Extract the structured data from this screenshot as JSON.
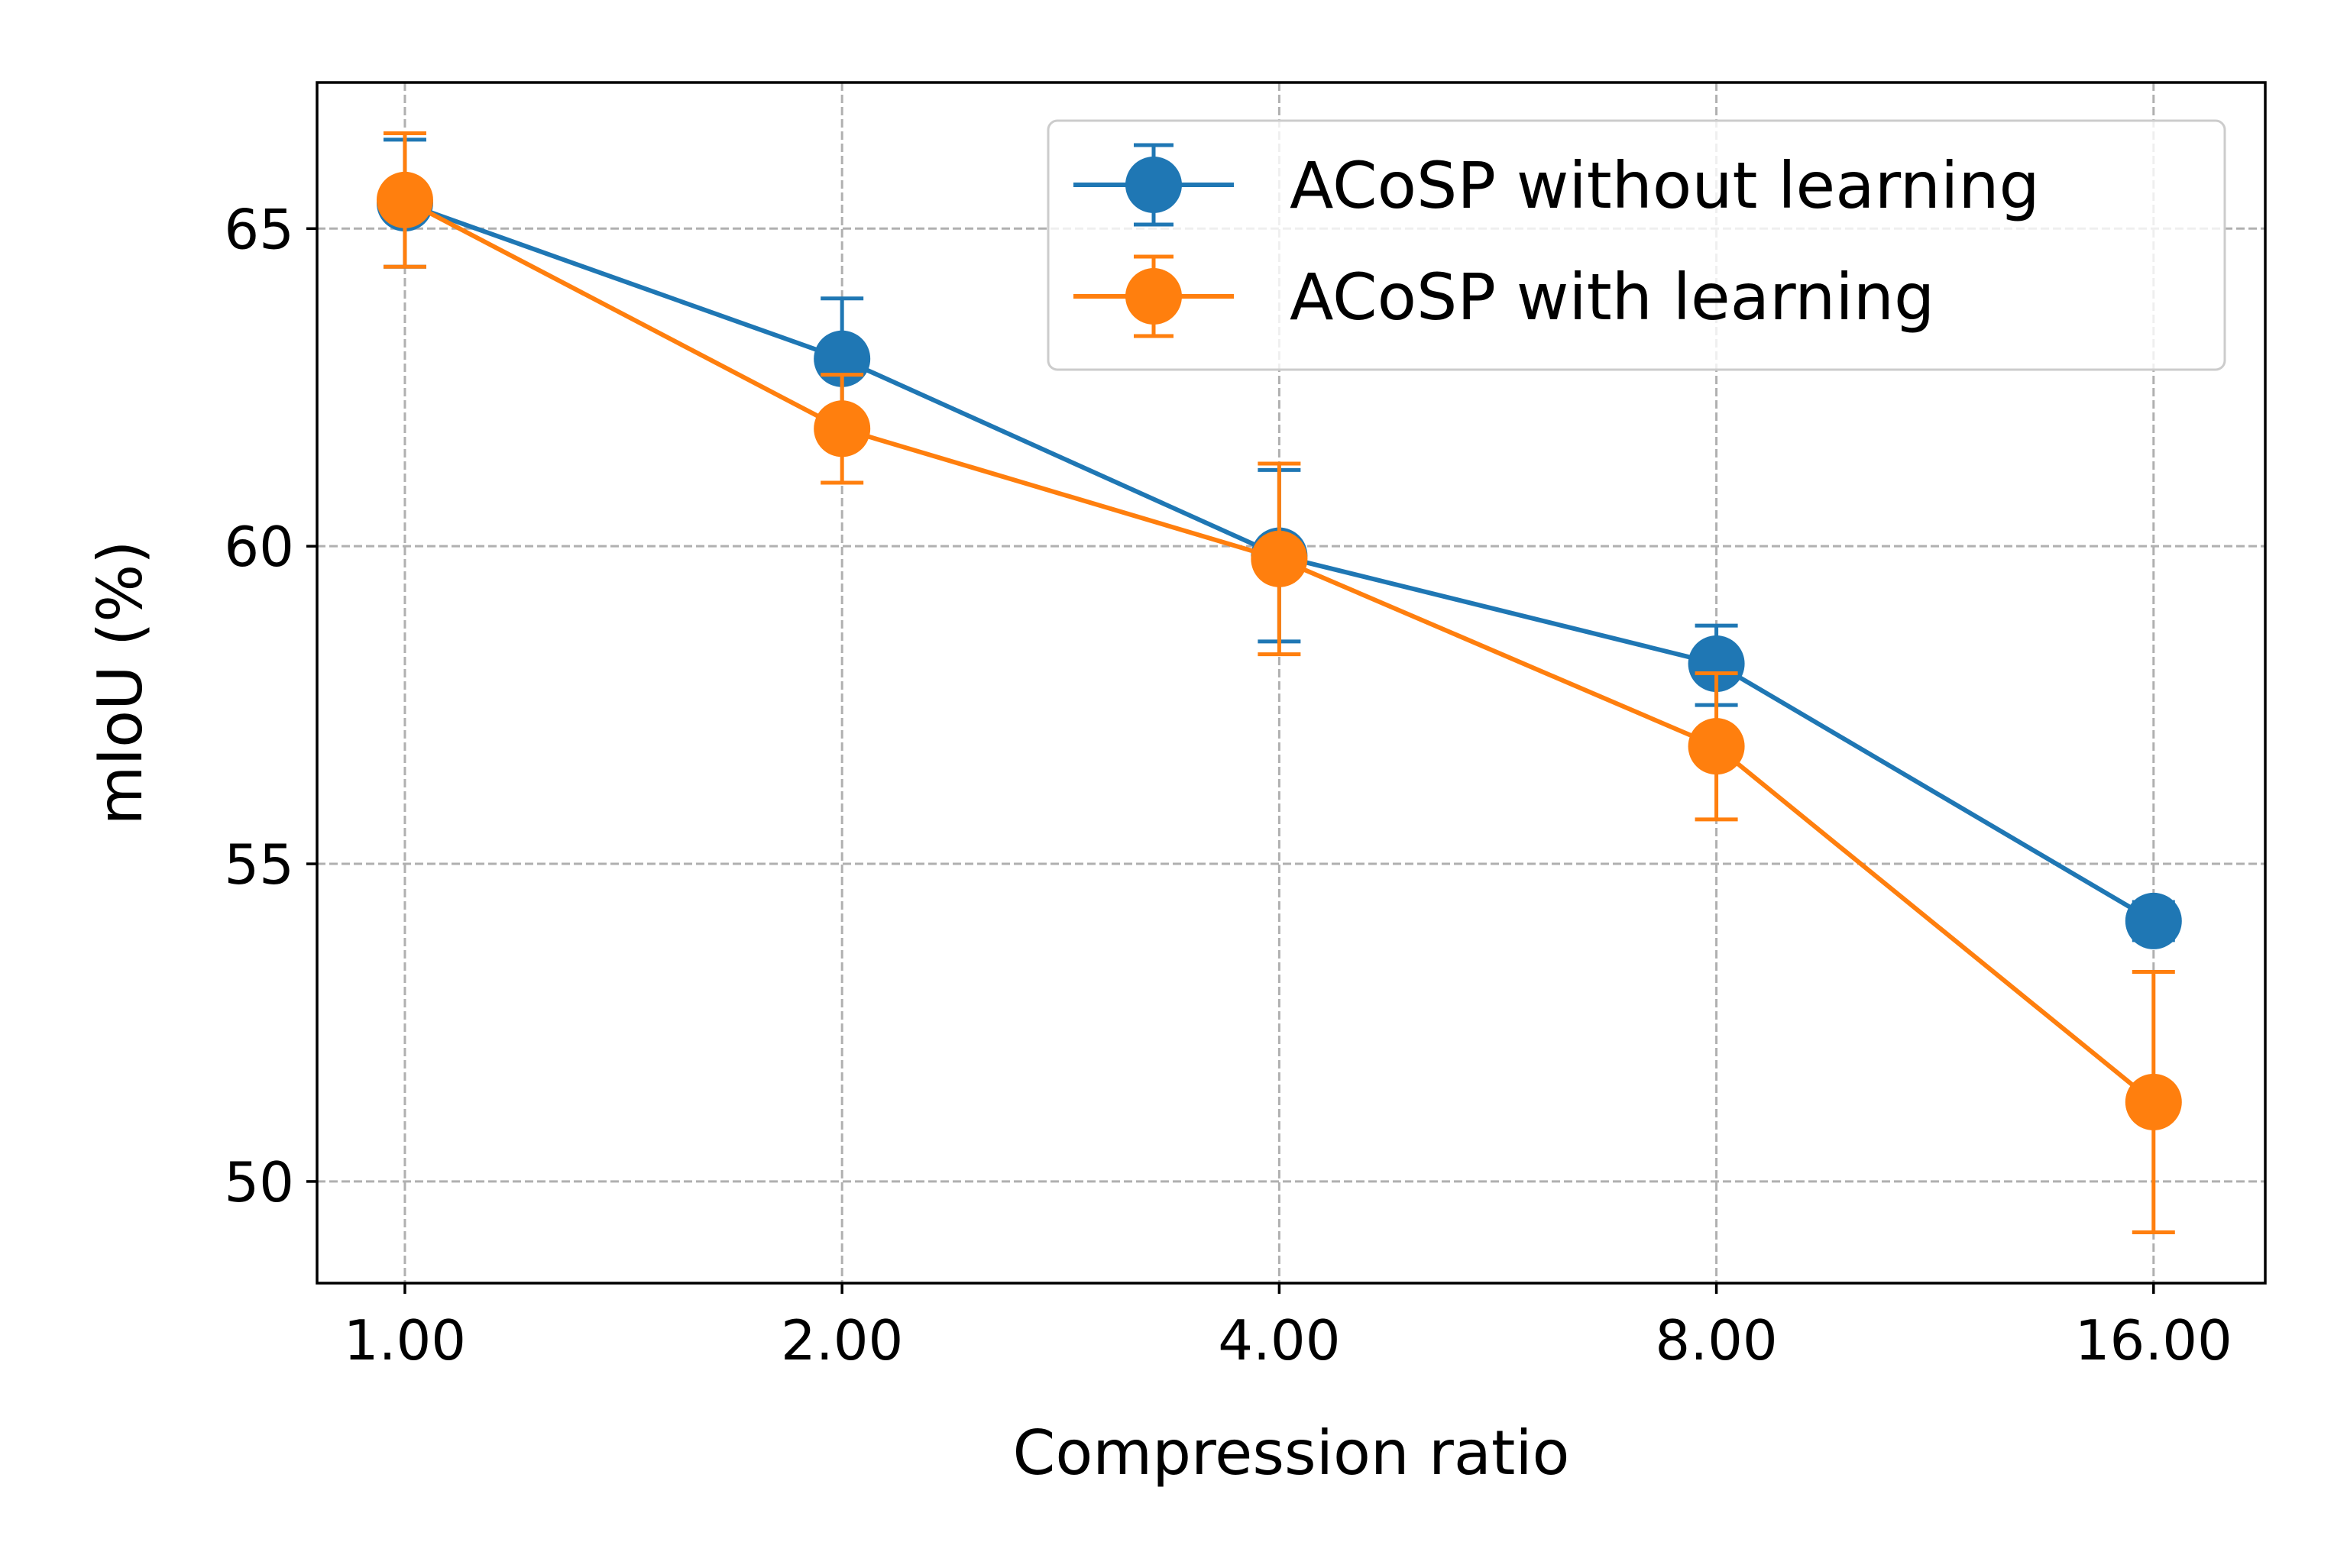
{
  "chart_data": {
    "type": "line",
    "xlabel": "Compression ratio",
    "ylabel": "mIoU (%)",
    "x_scale": "log2",
    "x": [
      1,
      2,
      4,
      8,
      16
    ],
    "x_tick_labels": [
      "1.00",
      "2.00",
      "4.00",
      "8.00",
      "16.00"
    ],
    "y_ticks": [
      50,
      55,
      60,
      65
    ],
    "y_tick_labels": [
      "50",
      "55",
      "60",
      "65"
    ],
    "xlim": [
      0.87,
      19.1
    ],
    "ylim": [
      48.4,
      67.3
    ],
    "grid": true,
    "legend_position": "top-right",
    "series": [
      {
        "name": "ACoSP without learning",
        "color": "#1f77b4",
        "values": [
          65.4,
          62.95,
          59.85,
          58.15,
          54.1
        ],
        "err_low": [
          64.4,
          62.0,
          58.5,
          57.5,
          53.8
        ],
        "err_high": [
          66.4,
          63.9,
          61.2,
          58.75,
          54.4
        ]
      },
      {
        "name": "ACoSP with learning",
        "color": "#ff7f0e",
        "values": [
          65.45,
          61.85,
          59.8,
          56.85,
          51.25
        ],
        "err_low": [
          64.4,
          61.0,
          58.3,
          55.7,
          49.2
        ],
        "err_high": [
          66.5,
          62.7,
          61.3,
          58.0,
          53.3
        ]
      }
    ]
  }
}
